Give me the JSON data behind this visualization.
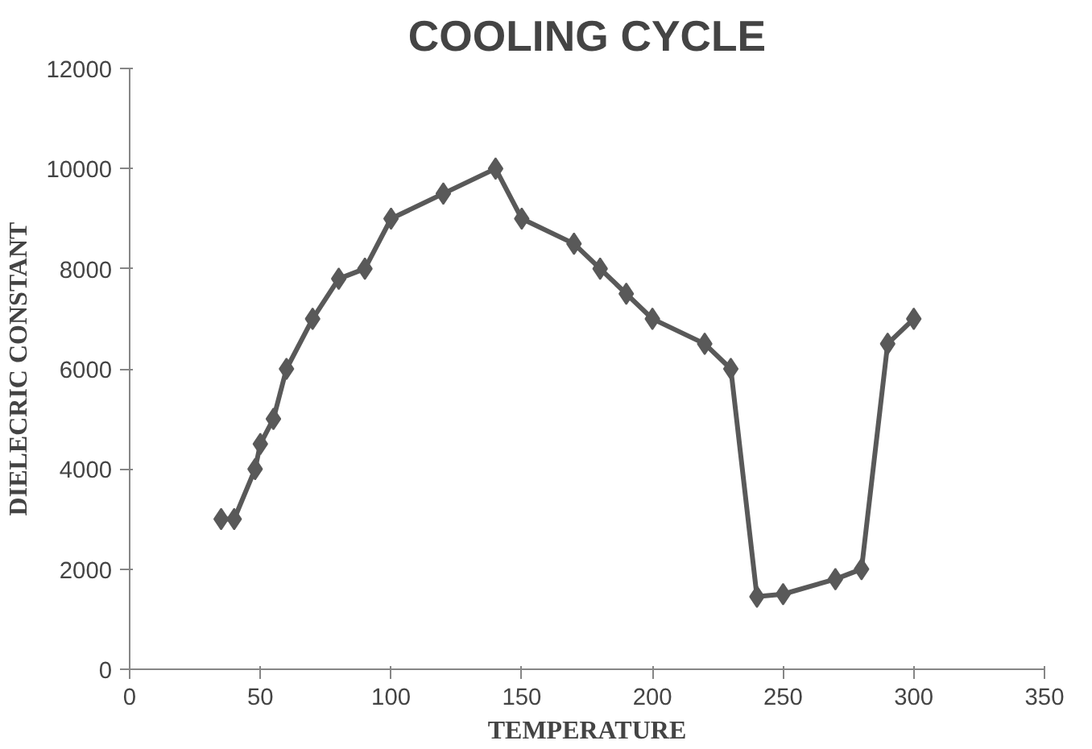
{
  "chart_data": {
    "type": "line",
    "title": "COOLING CYCLE",
    "xlabel": "TEMPERATURE",
    "ylabel": "DIELECRIC CONSTANT",
    "x": [
      35,
      40,
      48,
      50,
      55,
      60,
      70,
      80,
      90,
      100,
      120,
      140,
      150,
      170,
      180,
      190,
      200,
      220,
      230,
      240,
      250,
      270,
      280,
      290,
      300
    ],
    "series": [
      {
        "color": "#595959",
        "values": [
          3000,
          3000,
          4000,
          4500,
          5000,
          6000,
          7000,
          7800,
          8000,
          9000,
          9500,
          10000,
          9000,
          8500,
          8000,
          7500,
          7000,
          6500,
          6000,
          1450,
          1500,
          1800,
          2000,
          6500,
          7000
        ]
      }
    ],
    "xlim": [
      0,
      350
    ],
    "xticks": [
      0,
      50,
      100,
      150,
      200,
      250,
      300,
      350
    ],
    "ylim": [
      0,
      12000
    ],
    "yticks": [
      0,
      2000,
      4000,
      6000,
      8000,
      10000,
      12000
    ],
    "grid": false,
    "marker": "diamond",
    "line_style": "solid"
  }
}
